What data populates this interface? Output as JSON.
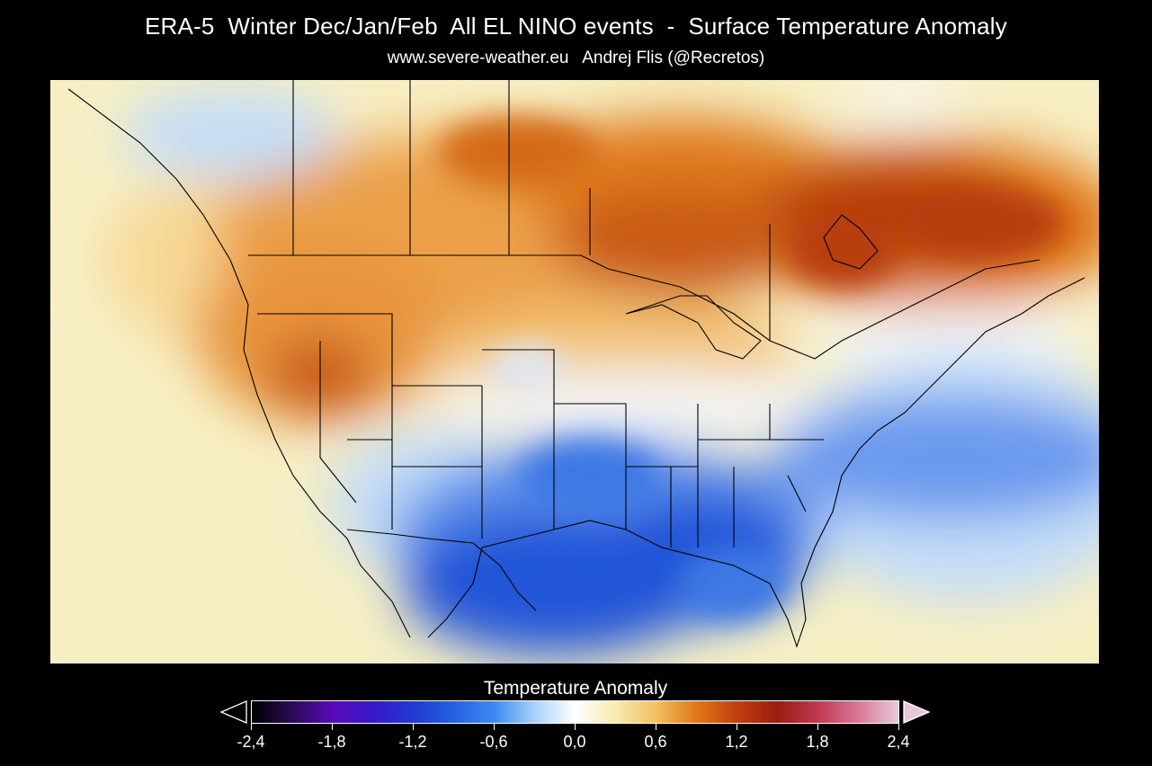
{
  "header": {
    "title": "ERA-5  Winter Dec/Jan/Feb  All EL NINO events  -  Surface Temperature Anomaly",
    "subtitle": "www.severe-weather.eu   Andrej Flis (@Recretos)"
  },
  "legend": {
    "title": "Temperature Anomaly",
    "ticks": [
      "-2,4",
      "-1,8",
      "-1,2",
      "-0,6",
      "0,0",
      "0,6",
      "1,2",
      "1,8",
      "2,4"
    ],
    "range": [
      -2.4,
      2.4
    ],
    "stops": [
      {
        "value": -2.4,
        "color": "#000000"
      },
      {
        "value": -2.1,
        "color": "#2a0a55"
      },
      {
        "value": -1.8,
        "color": "#5a0ab8"
      },
      {
        "value": -1.5,
        "color": "#3a18c8"
      },
      {
        "value": -1.2,
        "color": "#1e3ad2"
      },
      {
        "value": -0.9,
        "color": "#2460e0"
      },
      {
        "value": -0.6,
        "color": "#3c8af0"
      },
      {
        "value": -0.3,
        "color": "#a8d2f8"
      },
      {
        "value": 0.0,
        "color": "#ffffff"
      },
      {
        "value": 0.3,
        "color": "#f8ecb0"
      },
      {
        "value": 0.6,
        "color": "#f0c060"
      },
      {
        "value": 0.9,
        "color": "#e07818"
      },
      {
        "value": 1.2,
        "color": "#c04010"
      },
      {
        "value": 1.5,
        "color": "#9a1c10"
      },
      {
        "value": 1.8,
        "color": "#c03850"
      },
      {
        "value": 2.1,
        "color": "#d87898"
      },
      {
        "value": 2.4,
        "color": "#e8c8d8"
      }
    ]
  },
  "map": {
    "region": "North America",
    "colors": {
      "ocean_neutral": "#f7efc4",
      "strong_warm": "#b83e0a",
      "warm": "#e07a1e",
      "mild_warm": "#f2b45a",
      "light_warm": "#f7d896",
      "neutral": "#ffffff",
      "light_cool": "#c4ddf8",
      "cool": "#5a90ec",
      "strong_cool": "#2054d8",
      "border": "#000000"
    }
  }
}
